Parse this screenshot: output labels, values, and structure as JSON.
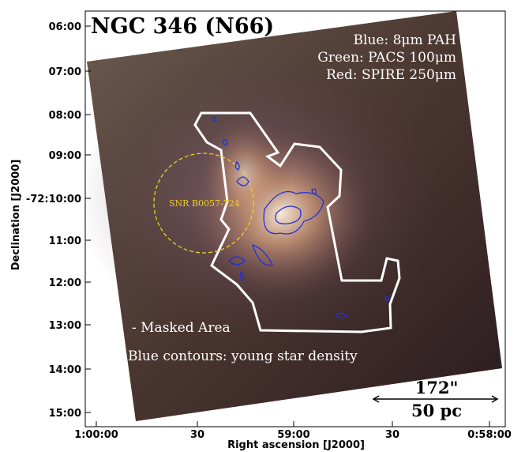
{
  "figure": {
    "title": "NGC 346 (N66)",
    "bands": [
      "Blue: 8μm PAH",
      "Green: PACS 100μm",
      "Red: SPIRE 250μm"
    ],
    "snr_label": "SNR B0057-724",
    "mask_label": "- Masked Area",
    "contour_label": "Blue contours: young star density",
    "scale_bar": {
      "angular": "172\"",
      "physical": "50 pc"
    },
    "x_axis": {
      "label": "Right ascension [J2000]",
      "ticks": [
        "1:00:00",
        "30",
        "59:00",
        "30",
        "0:58:00"
      ]
    },
    "y_axis": {
      "label": "Declination [J2000]",
      "ticks": [
        "06:00",
        "07:00",
        "08:00",
        "09:00",
        "-72:10:00",
        "11:00",
        "12:00",
        "13:00",
        "14:00",
        "15:00"
      ]
    }
  }
}
